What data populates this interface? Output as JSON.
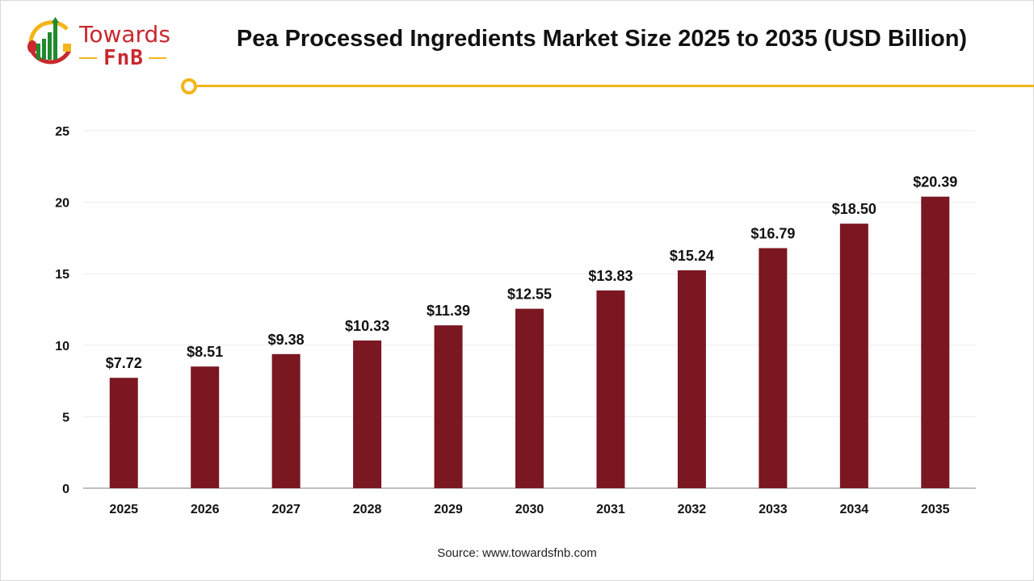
{
  "logo": {
    "line1": "Towards",
    "line2": "FnB"
  },
  "title": "Pea Processed Ingredients Market Size 2025 to 2035 (USD Billion)",
  "source": "Source: www.towardsfnb.com",
  "colors": {
    "bar": "#7a1721",
    "accent": "#f2b51c",
    "brand": "#c8282e"
  },
  "chart_data": {
    "type": "bar",
    "title": "Pea Processed Ingredients Market Size 2025 to 2035 (USD Billion)",
    "categories": [
      "2025",
      "2026",
      "2027",
      "2028",
      "2029",
      "2030",
      "2031",
      "2032",
      "2033",
      "2034",
      "2035"
    ],
    "values": [
      7.72,
      8.51,
      9.38,
      10.33,
      11.39,
      12.55,
      13.83,
      15.24,
      16.79,
      18.5,
      20.39
    ],
    "data_labels": [
      "$7.72",
      "$8.51",
      "$9.38",
      "$10.33",
      "$11.39",
      "$12.55",
      "$13.83",
      "$15.24",
      "$16.79",
      "$18.50",
      "$20.39"
    ],
    "ylim": [
      0,
      25
    ],
    "yticks": [
      "0",
      "5",
      "10",
      "15",
      "20",
      "25"
    ],
    "grid": true,
    "xlabel": "",
    "ylabel": ""
  }
}
